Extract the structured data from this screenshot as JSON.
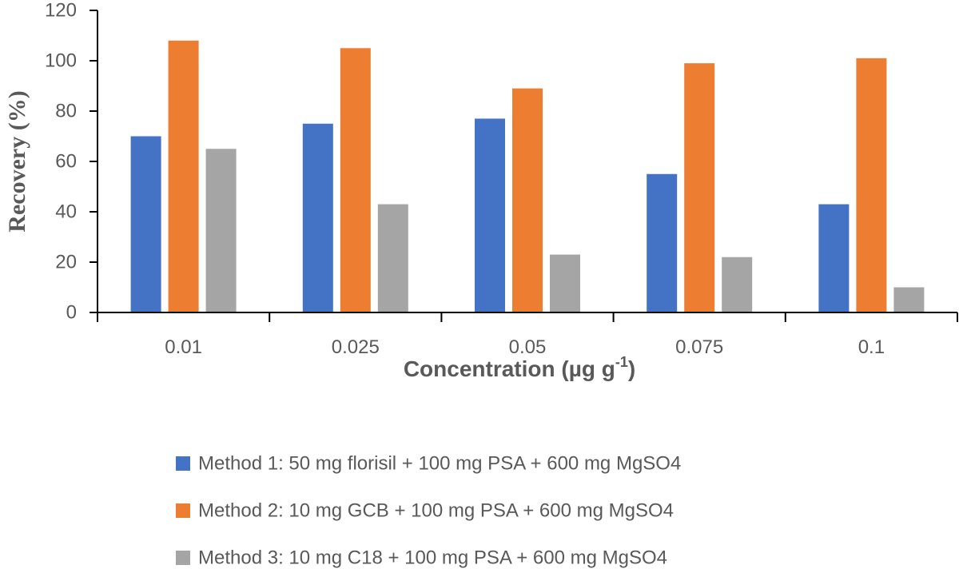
{
  "chart_data": {
    "type": "bar",
    "title": "",
    "xlabel": "Concentration (µg g",
    "xlabel_superscript": "-1",
    "xlabel_close": ")",
    "ylabel": "Recovery (%)",
    "ylim": [
      0,
      120
    ],
    "yticks": [
      0,
      20,
      40,
      60,
      80,
      100,
      120
    ],
    "categories": [
      "0.01",
      "0.025",
      "0.05",
      "0.075",
      "0.1"
    ],
    "series": [
      {
        "name": "Method 1: 50 mg florisil + 100 mg PSA + 600 mg MgSO4",
        "color": "#4472c4",
        "values": [
          70,
          75,
          77,
          55,
          43
        ]
      },
      {
        "name": "Method 2: 10 mg GCB + 100 mg PSA + 600 mg MgSO4",
        "color": "#ed7d31",
        "values": [
          108,
          105,
          89,
          99,
          101
        ]
      },
      {
        "name": "Method 3: 10 mg C18 + 100 mg PSA + 600 mg MgSO4",
        "color": "#a5a5a5",
        "values": [
          65,
          43,
          23,
          22,
          10
        ]
      }
    ],
    "grid": false,
    "legend_position": "bottom"
  }
}
